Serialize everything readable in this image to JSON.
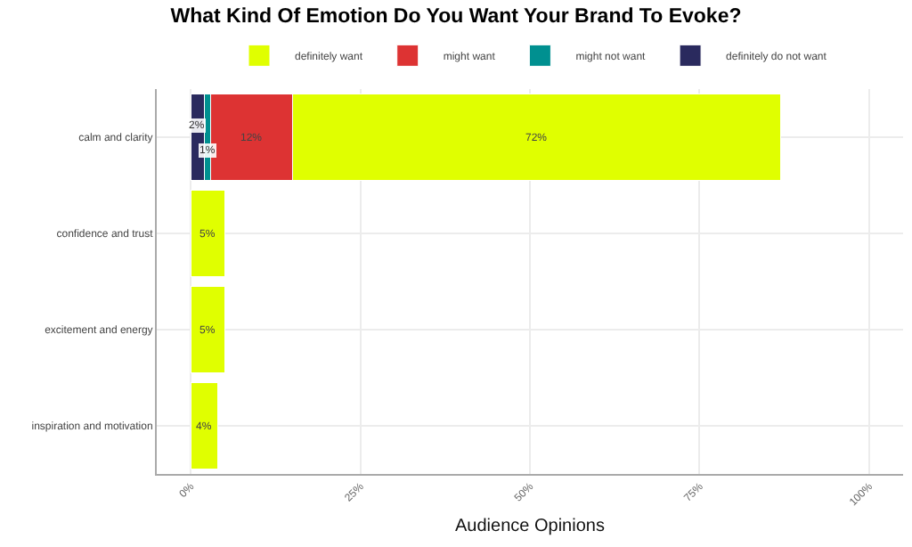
{
  "chart_data": {
    "type": "bar",
    "orientation": "horizontal",
    "stacked": true,
    "title": "What Kind Of Emotion Do You Want Your Brand To Evoke?",
    "xlabel": "Audience Opinions",
    "categories": [
      "calm and clarity",
      "confidence and trust",
      "excitement and energy",
      "inspiration and motivation"
    ],
    "series": [
      {
        "name": "definitely do not want",
        "color": "#2a2a5e",
        "values": [
          2,
          null,
          null,
          null
        ],
        "value_labels": [
          "2%",
          null,
          null,
          null
        ]
      },
      {
        "name": "might not want",
        "color": "#009090",
        "values": [
          1,
          null,
          null,
          null
        ],
        "value_labels": [
          "1%",
          null,
          null,
          null
        ]
      },
      {
        "name": "might want",
        "color": "#dd3333",
        "values": [
          12,
          null,
          null,
          null
        ],
        "value_labels": [
          "12%",
          null,
          null,
          null
        ]
      },
      {
        "name": "definitely want",
        "color": "#e0ff00",
        "values": [
          72,
          5,
          5,
          4
        ],
        "value_labels": [
          "72%",
          "5%",
          "5%",
          "4%"
        ]
      }
    ],
    "xlim": [
      -5,
      105
    ],
    "xticks": [
      {
        "value": 0,
        "label": "0%"
      },
      {
        "value": 25,
        "label": "25%"
      },
      {
        "value": 50,
        "label": "50%"
      },
      {
        "value": 75,
        "label": "75%"
      },
      {
        "value": 100,
        "label": "100%"
      }
    ],
    "grid": true,
    "legend": "top"
  }
}
